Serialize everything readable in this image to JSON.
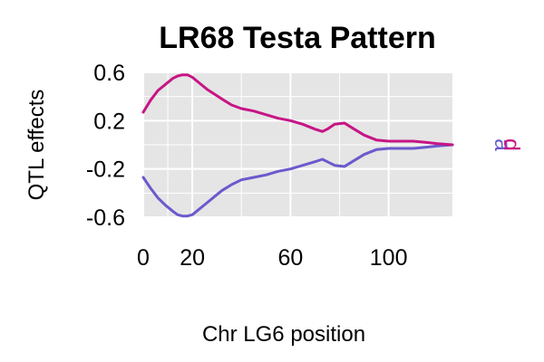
{
  "chart_data": {
    "type": "line",
    "title": "LR68 Testa Pattern",
    "xlabel": "Chr LG6 position",
    "ylabel": "QTL effects",
    "xlim": [
      0,
      126
    ],
    "ylim": [
      -0.6,
      0.6
    ],
    "x_ticks": [
      0,
      20,
      60,
      100
    ],
    "y_ticks": [
      -0.6,
      -0.2,
      0.2,
      0.6
    ],
    "grid": true,
    "background_color": "#e5e5e5",
    "grid_color": "#ffffff",
    "legend": {
      "placement": "right",
      "entries": [
        "a",
        "d"
      ]
    },
    "series": [
      {
        "name": "a",
        "color": "#6a5acd",
        "x": [
          0,
          3,
          6,
          9,
          12,
          14,
          16,
          18,
          20,
          23,
          26,
          29,
          32,
          36,
          40,
          45,
          50,
          55,
          60,
          65,
          70,
          73,
          75,
          78,
          82,
          86,
          90,
          95,
          100,
          105,
          110,
          115,
          120,
          126
        ],
        "y": [
          -0.27,
          -0.36,
          -0.44,
          -0.5,
          -0.55,
          -0.58,
          -0.59,
          -0.59,
          -0.58,
          -0.53,
          -0.48,
          -0.43,
          -0.38,
          -0.33,
          -0.29,
          -0.27,
          -0.25,
          -0.22,
          -0.2,
          -0.17,
          -0.14,
          -0.12,
          -0.14,
          -0.17,
          -0.18,
          -0.13,
          -0.08,
          -0.04,
          -0.03,
          -0.03,
          -0.03,
          -0.02,
          -0.01,
          0.0
        ]
      },
      {
        "name": "d",
        "color": "#c71585",
        "x": [
          0,
          3,
          6,
          9,
          12,
          14,
          16,
          18,
          20,
          23,
          26,
          29,
          32,
          36,
          40,
          45,
          50,
          55,
          60,
          65,
          70,
          73,
          75,
          78,
          82,
          86,
          90,
          95,
          100,
          105,
          110,
          115,
          120,
          126
        ],
        "y": [
          0.27,
          0.37,
          0.45,
          0.5,
          0.55,
          0.57,
          0.58,
          0.58,
          0.56,
          0.51,
          0.46,
          0.42,
          0.38,
          0.33,
          0.3,
          0.28,
          0.25,
          0.22,
          0.2,
          0.17,
          0.13,
          0.11,
          0.13,
          0.17,
          0.18,
          0.13,
          0.08,
          0.04,
          0.03,
          0.03,
          0.03,
          0.02,
          0.01,
          0.0
        ]
      }
    ]
  }
}
